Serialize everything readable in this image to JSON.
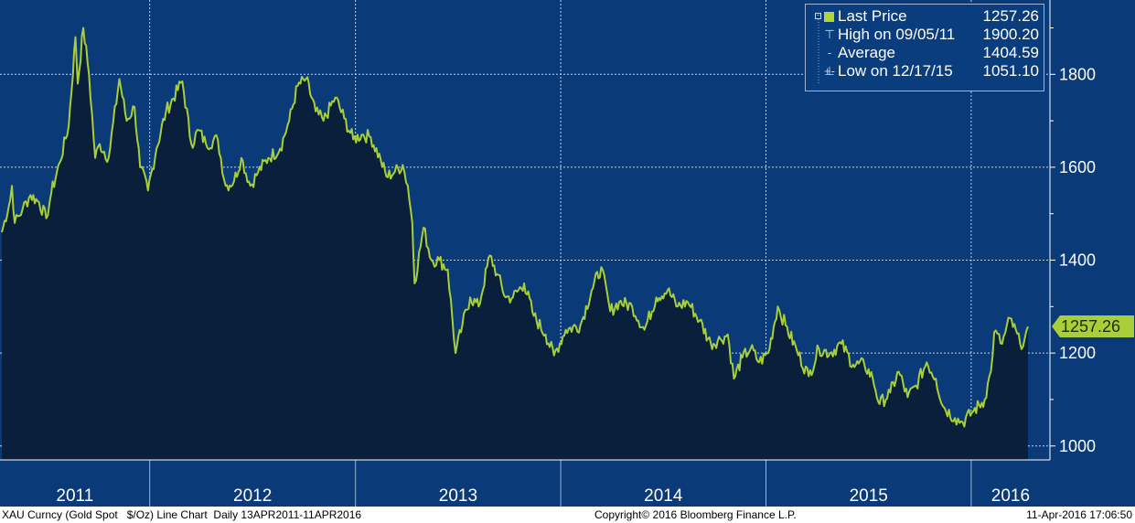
{
  "chart_data": {
    "type": "area",
    "title": "",
    "xlabel": "",
    "ylabel": "",
    "x_range": [
      "2011-04-13",
      "2016-04-11"
    ],
    "ylim": [
      970,
      1960
    ],
    "y_ticks": [
      1000,
      1200,
      1400,
      1600,
      1800
    ],
    "y_tick_labels": [
      "1000",
      "1200",
      "1400",
      "1600",
      "1800"
    ],
    "x_year_labels": [
      "2011",
      "2012",
      "2013",
      "2014",
      "2015",
      "2016"
    ],
    "grid": true,
    "legend_position": "top-right",
    "colors": {
      "background": "#0b3a78",
      "line": "#a9cf38",
      "fill": "#0a1f3c",
      "grid": "#c7d4e6",
      "badge": "#a9cf38"
    },
    "series": [
      {
        "name": "Last Price",
        "points": [
          [
            "2011-04-13",
            1460
          ],
          [
            "2011-04-28",
            1530
          ],
          [
            "2011-05-01",
            1560
          ],
          [
            "2011-05-06",
            1480
          ],
          [
            "2011-05-20",
            1510
          ],
          [
            "2011-06-03",
            1540
          ],
          [
            "2011-06-18",
            1525
          ],
          [
            "2011-07-01",
            1490
          ],
          [
            "2011-07-10",
            1545
          ],
          [
            "2011-07-25",
            1610
          ],
          [
            "2011-08-10",
            1690
          ],
          [
            "2011-08-22",
            1880
          ],
          [
            "2011-08-26",
            1780
          ],
          [
            "2011-09-05",
            1900
          ],
          [
            "2011-09-15",
            1800
          ],
          [
            "2011-09-26",
            1620
          ],
          [
            "2011-10-04",
            1650
          ],
          [
            "2011-10-20",
            1620
          ],
          [
            "2011-11-08",
            1790
          ],
          [
            "2011-11-21",
            1700
          ],
          [
            "2011-12-05",
            1730
          ],
          [
            "2011-12-15",
            1600
          ],
          [
            "2011-12-29",
            1550
          ],
          [
            "2012-01-13",
            1640
          ],
          [
            "2012-01-30",
            1720
          ],
          [
            "2012-02-28",
            1785
          ],
          [
            "2012-03-15",
            1650
          ],
          [
            "2012-03-28",
            1680
          ],
          [
            "2012-04-10",
            1650
          ],
          [
            "2012-05-01",
            1660
          ],
          [
            "2012-05-15",
            1560
          ],
          [
            "2012-05-30",
            1570
          ],
          [
            "2012-06-12",
            1620
          ],
          [
            "2012-06-28",
            1560
          ],
          [
            "2012-07-12",
            1590
          ],
          [
            "2012-07-30",
            1620
          ],
          [
            "2012-08-20",
            1640
          ],
          [
            "2012-09-05",
            1700
          ],
          [
            "2012-09-20",
            1775
          ],
          [
            "2012-10-05",
            1790
          ],
          [
            "2012-10-22",
            1720
          ],
          [
            "2012-11-05",
            1700
          ],
          [
            "2012-11-26",
            1750
          ],
          [
            "2012-12-12",
            1705
          ],
          [
            "2012-12-28",
            1660
          ],
          [
            "2013-01-12",
            1670
          ],
          [
            "2013-01-28",
            1665
          ],
          [
            "2013-02-15",
            1615
          ],
          [
            "2013-02-25",
            1580
          ],
          [
            "2013-03-12",
            1590
          ],
          [
            "2013-03-26",
            1605
          ],
          [
            "2013-04-04",
            1560
          ],
          [
            "2013-04-12",
            1480
          ],
          [
            "2013-04-16",
            1350
          ],
          [
            "2013-05-02",
            1470
          ],
          [
            "2013-05-16",
            1400
          ],
          [
            "2013-05-30",
            1400
          ],
          [
            "2013-06-14",
            1380
          ],
          [
            "2013-06-28",
            1200
          ],
          [
            "2013-07-10",
            1260
          ],
          [
            "2013-07-24",
            1320
          ],
          [
            "2013-08-08",
            1300
          ],
          [
            "2013-08-28",
            1410
          ],
          [
            "2013-09-10",
            1370
          ],
          [
            "2013-09-25",
            1320
          ],
          [
            "2013-10-08",
            1320
          ],
          [
            "2013-10-28",
            1350
          ],
          [
            "2013-11-14",
            1280
          ],
          [
            "2013-12-05",
            1240
          ],
          [
            "2013-12-20",
            1195
          ],
          [
            "2014-01-10",
            1250
          ],
          [
            "2014-02-05",
            1260
          ],
          [
            "2014-02-25",
            1335
          ],
          [
            "2014-03-14",
            1385
          ],
          [
            "2014-03-30",
            1290
          ],
          [
            "2014-04-15",
            1310
          ],
          [
            "2014-05-08",
            1300
          ],
          [
            "2014-05-30",
            1250
          ],
          [
            "2014-06-20",
            1320
          ],
          [
            "2014-07-10",
            1335
          ],
          [
            "2014-07-28",
            1300
          ],
          [
            "2014-08-15",
            1310
          ],
          [
            "2014-09-05",
            1270
          ],
          [
            "2014-09-25",
            1220
          ],
          [
            "2014-10-12",
            1230
          ],
          [
            "2014-10-25",
            1240
          ],
          [
            "2014-11-05",
            1145
          ],
          [
            "2014-11-20",
            1190
          ],
          [
            "2014-12-05",
            1210
          ],
          [
            "2014-12-20",
            1180
          ],
          [
            "2015-01-05",
            1200
          ],
          [
            "2015-01-22",
            1300
          ],
          [
            "2015-02-05",
            1260
          ],
          [
            "2015-02-25",
            1205
          ],
          [
            "2015-03-18",
            1150
          ],
          [
            "2015-04-05",
            1210
          ],
          [
            "2015-04-25",
            1200
          ],
          [
            "2015-05-15",
            1220
          ],
          [
            "2015-06-05",
            1175
          ],
          [
            "2015-06-25",
            1175
          ],
          [
            "2015-07-10",
            1145
          ],
          [
            "2015-07-22",
            1090
          ],
          [
            "2015-08-10",
            1115
          ],
          [
            "2015-08-25",
            1160
          ],
          [
            "2015-09-10",
            1105
          ],
          [
            "2015-09-25",
            1130
          ],
          [
            "2015-10-14",
            1180
          ],
          [
            "2015-10-30",
            1145
          ],
          [
            "2015-11-12",
            1085
          ],
          [
            "2015-12-03",
            1060
          ],
          [
            "2015-12-17",
            1051
          ],
          [
            "2016-01-05",
            1075
          ],
          [
            "2016-01-25",
            1100
          ],
          [
            "2016-02-05",
            1160
          ],
          [
            "2016-02-11",
            1245
          ],
          [
            "2016-02-25",
            1220
          ],
          [
            "2016-03-10",
            1275
          ],
          [
            "2016-03-28",
            1220
          ],
          [
            "2016-04-05",
            1230
          ],
          [
            "2016-04-11",
            1257
          ]
        ]
      }
    ],
    "legend": [
      {
        "name": "Last Price",
        "value": "1257.26"
      },
      {
        "name": "High on 09/05/11",
        "value": "1900.20"
      },
      {
        "name": "Average",
        "value": "1404.59"
      },
      {
        "name": "Low on 12/17/15",
        "value": "1051.10"
      }
    ],
    "last_price_label": "1257.26"
  },
  "footer": {
    "left": "XAU Curncy (Gold Spot   $/Oz) Line Chart  Daily 13APR2011-11APR2016",
    "center": "Copyright© 2016 Bloomberg Finance L.P.",
    "right": "11-Apr-2016 17:06:50"
  }
}
